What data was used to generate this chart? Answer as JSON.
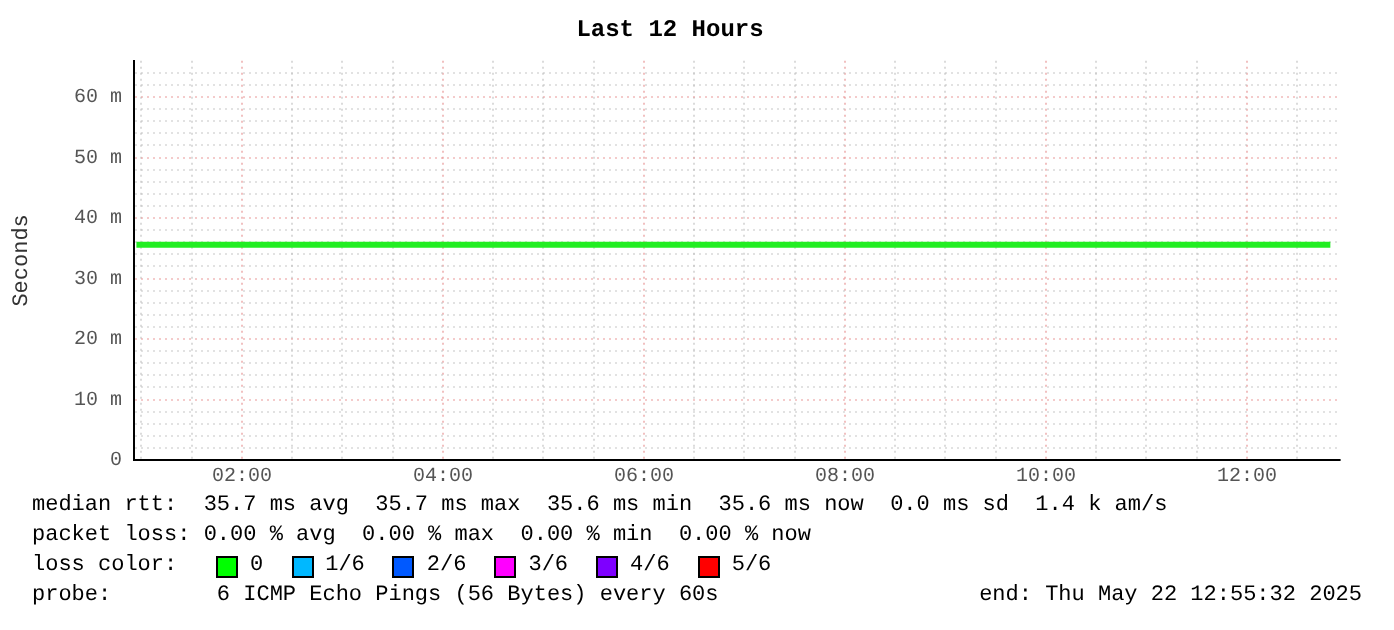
{
  "chart_data": {
    "type": "line",
    "title": "Last 12 Hours",
    "ylabel": "Seconds",
    "x": [
      0.95,
      12.83
    ],
    "series": [
      {
        "color": "#22ee22",
        "values": [
          35.6,
          35.6
        ]
      }
    ],
    "xlim": [
      0.926,
      12.926
    ],
    "xticks": [
      {
        "value": 1,
        "label": null
      },
      {
        "value": 1.5,
        "label": null
      },
      {
        "value": 2,
        "label": "02:00"
      },
      {
        "value": 2.5,
        "label": null
      },
      {
        "value": 3,
        "label": null
      },
      {
        "value": 3.5,
        "label": null
      },
      {
        "value": 4,
        "label": "04:00"
      },
      {
        "value": 4.5,
        "label": null
      },
      {
        "value": 5,
        "label": null
      },
      {
        "value": 5.5,
        "label": null
      },
      {
        "value": 6,
        "label": "06:00"
      },
      {
        "value": 6.5,
        "label": null
      },
      {
        "value": 7,
        "label": null
      },
      {
        "value": 7.5,
        "label": null
      },
      {
        "value": 8,
        "label": "08:00"
      },
      {
        "value": 8.5,
        "label": null
      },
      {
        "value": 9,
        "label": null
      },
      {
        "value": 9.5,
        "label": null
      },
      {
        "value": 10,
        "label": "10:00"
      },
      {
        "value": 10.5,
        "label": null
      },
      {
        "value": 11,
        "label": null
      },
      {
        "value": 11.5,
        "label": null
      },
      {
        "value": 12,
        "label": "12:00"
      },
      {
        "value": 12.5,
        "label": null
      }
    ],
    "ylim": [
      0,
      66
    ],
    "yticks": [
      0,
      {
        "value": 2,
        "label": null
      },
      {
        "value": 4,
        "label": null
      },
      {
        "value": 6,
        "label": null
      },
      {
        "value": 8,
        "label": null
      },
      {
        "value": 10,
        "label": "10 m"
      },
      {
        "value": 12,
        "label": null
      },
      {
        "value": 14,
        "label": null
      },
      {
        "value": 16,
        "label": null
      },
      {
        "value": 18,
        "label": null
      },
      {
        "value": 20,
        "label": "20 m"
      },
      {
        "value": 22,
        "label": null
      },
      {
        "value": 24,
        "label": null
      },
      {
        "value": 26,
        "label": null
      },
      {
        "value": 28,
        "label": null
      },
      {
        "value": 30,
        "label": "30 m"
      },
      {
        "value": 32,
        "label": null
      },
      {
        "value": 34,
        "label": null
      },
      {
        "value": 36,
        "label": null
      },
      {
        "value": 38,
        "label": null
      },
      {
        "value": 40,
        "label": "40 m"
      },
      {
        "value": 42,
        "label": null
      },
      {
        "value": 44,
        "label": null
      },
      {
        "value": 46,
        "label": null
      },
      {
        "value": 48,
        "label": null
      },
      {
        "value": 50,
        "label": "50 m"
      },
      {
        "value": 52,
        "label": null
      },
      {
        "value": 54,
        "label": null
      },
      {
        "value": 56,
        "label": null
      },
      {
        "value": 58,
        "label": null
      },
      {
        "value": 60,
        "label": "60 m"
      },
      {
        "value": 62,
        "label": null
      },
      {
        "value": 64,
        "label": null
      }
    ],
    "grid": true,
    "marker": "none",
    "line_style": "solid",
    "legend": false,
    "annotations": [
      "median rtt:  35.7 ms avg  35.7 ms max  35.6 ms min  35.6 ms now  0.0 ms sd  1.4 k am/s",
      "packet loss: 0.00 % avg  0.00 % max  0.00 % min  0.00 % now",
      "loss color:",
      "0",
      "1/6",
      "2/6",
      "3/6",
      "4/6",
      "5/6",
      "probe:        6 ICMP Echo Pings (56 Bytes) every 60s",
      "end: Thu May 22 12:55:32 2025"
    ]
  }
}
